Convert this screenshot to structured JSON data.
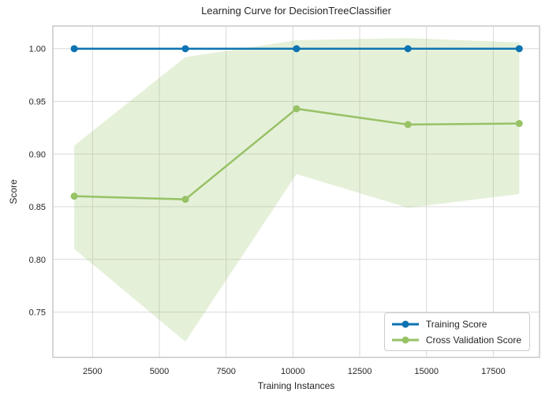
{
  "colors": {
    "text": "#262626",
    "grid": "#d9d9d9",
    "spine": "#c9c9c9",
    "background": "#ffffff"
  },
  "chart_data": {
    "type": "line",
    "title": "Learning Curve for DecisionTreeClassifier",
    "xlabel": "Training Instances",
    "ylabel": "Score",
    "grid": true,
    "legend_position": "lower right",
    "xlim": [
      1015,
      19230
    ],
    "ylim": [
      0.707,
      1.0215
    ],
    "x_ticks": [
      2500,
      5000,
      7500,
      10000,
      12500,
      15000,
      17500
    ],
    "y_ticks": [
      0.75,
      0.8,
      0.85,
      0.9,
      0.95,
      1.0
    ],
    "x": [
      1815,
      5975,
      10135,
      14305,
      18470
    ],
    "series": [
      {
        "name": "Training Score",
        "color": "#0d73b2",
        "values": [
          1.0,
          1.0,
          1.0,
          1.0,
          1.0
        ]
      },
      {
        "name": "Cross Validation Score",
        "color": "#97c266",
        "band_color": "#97c266",
        "band_opacity": 0.25,
        "values": [
          0.86,
          0.857,
          0.943,
          0.928,
          0.929
        ],
        "band_upper": [
          0.908,
          0.992,
          1.008,
          1.01,
          1.006
        ],
        "band_lower": [
          0.81,
          0.722,
          0.881,
          0.849,
          0.862
        ]
      }
    ]
  }
}
